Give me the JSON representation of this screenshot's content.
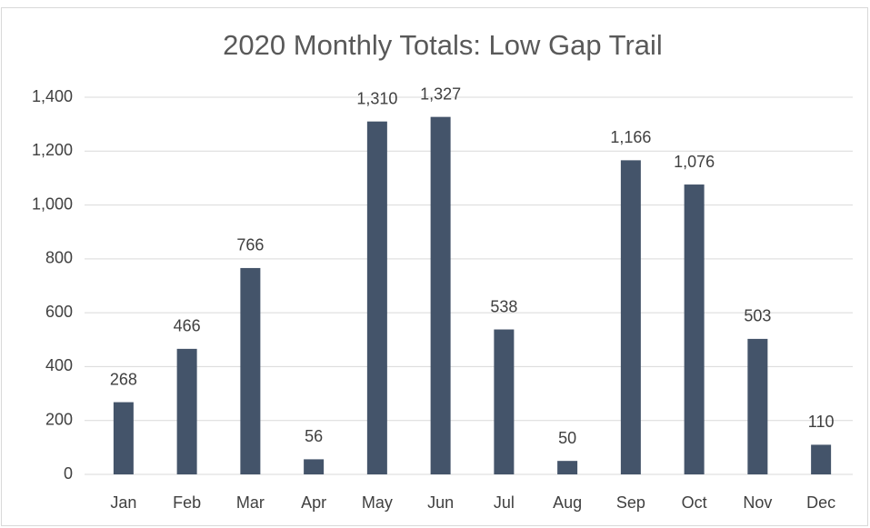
{
  "chart_data": {
    "type": "bar",
    "title": "2020 Monthly Totals: Low Gap Trail",
    "categories": [
      "Jan",
      "Feb",
      "Mar",
      "Apr",
      "May",
      "Jun",
      "Jul",
      "Aug",
      "Sep",
      "Oct",
      "Nov",
      "Dec"
    ],
    "values": [
      268,
      466,
      766,
      56,
      1310,
      1327,
      538,
      50,
      1166,
      1076,
      503,
      110
    ],
    "value_labels": [
      "268",
      "466",
      "766",
      "56",
      "1,310",
      "1,327",
      "538",
      "50",
      "1,166",
      "1,076",
      "503",
      "110"
    ],
    "color": "#44546a",
    "ylim": [
      0,
      1400
    ],
    "yticks": [
      0,
      200,
      400,
      600,
      800,
      {
        "value": 1000,
        "label": "1,000"
      },
      {
        "value": 1200,
        "label": "1,200"
      },
      {
        "value": 1400,
        "label": "1,400"
      }
    ],
    "grid": true
  }
}
